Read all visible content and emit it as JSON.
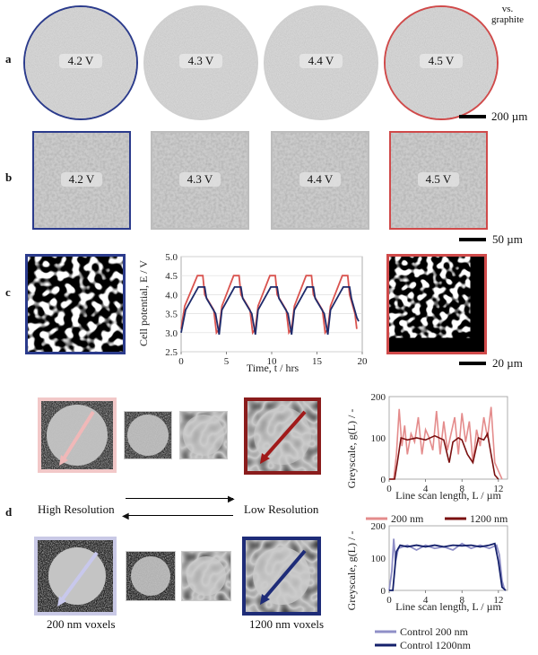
{
  "header": {
    "vs_line1": "vs.",
    "vs_line2": "graphite"
  },
  "panel_a": {
    "letter": "a",
    "discs": [
      {
        "label": "4.2 V",
        "border": "#2b3b8c"
      },
      {
        "label": "4.3 V",
        "border": "none"
      },
      {
        "label": "4.4 V",
        "border": "none"
      },
      {
        "label": "4.5 V",
        "border": "#d04a4a"
      }
    ],
    "scale_bar": "200 µm"
  },
  "panel_b": {
    "letter": "b",
    "tiles": [
      {
        "label": "4.2 V",
        "border": "#2b3b8c"
      },
      {
        "label": "4.3 V",
        "border": "none"
      },
      {
        "label": "4.4 V",
        "border": "none"
      },
      {
        "label": "4.5 V",
        "border": "#d04a4a"
      }
    ],
    "scale_bar": "50 µm"
  },
  "panel_c": {
    "letter": "c",
    "scale_bar": "20 µm",
    "chart_data": {
      "type": "line",
      "xlabel": "Time, t / hrs",
      "ylabel": "Cell potential, E / V",
      "xlim": [
        0,
        20
      ],
      "ylim": [
        2.5,
        5.0
      ],
      "xticks": [
        "0",
        "5",
        "10",
        "15",
        "20"
      ],
      "yticks": [
        "2.5",
        "3.0",
        "3.5",
        "4.0",
        "4.5",
        "5.0"
      ],
      "series": [
        {
          "color": "#d9534f",
          "x": [
            0,
            0.4,
            1.8,
            2.4,
            2.6,
            3.6,
            3.9,
            4.2,
            4.5,
            5.8,
            6.4,
            6.6,
            7.6,
            7.9,
            8.2,
            8.5,
            9.8,
            10.4,
            10.6,
            11.6,
            11.9,
            12.2,
            12.5,
            13.8,
            14.4,
            14.6,
            15.6,
            15.9,
            16.2,
            16.5,
            17.8,
            18.4,
            18.6,
            19.2,
            19.4
          ],
          "y": [
            3.1,
            3.7,
            4.5,
            4.5,
            4.0,
            3.6,
            3.0,
            3.1,
            3.7,
            4.5,
            4.5,
            4.0,
            3.6,
            3.0,
            3.1,
            3.7,
            4.5,
            4.5,
            4.0,
            3.6,
            3.0,
            3.1,
            3.7,
            4.5,
            4.5,
            4.0,
            3.6,
            3.0,
            3.1,
            3.7,
            4.5,
            4.5,
            4.0,
            3.5,
            3.1
          ]
        },
        {
          "color": "#1f2b6b",
          "x": [
            0,
            0.5,
            1.9,
            2.6,
            2.8,
            3.8,
            4.2,
            4.5,
            5.9,
            6.6,
            6.8,
            7.8,
            8.2,
            8.5,
            9.9,
            10.6,
            10.8,
            11.8,
            12.2,
            12.5,
            13.9,
            14.6,
            14.8,
            15.8,
            16.2,
            16.5,
            17.9,
            18.6,
            18.8,
            19.4,
            19.6
          ],
          "y": [
            3.0,
            3.6,
            4.2,
            4.2,
            3.9,
            3.5,
            2.95,
            3.6,
            4.2,
            4.2,
            3.9,
            3.5,
            2.95,
            3.6,
            4.2,
            4.2,
            3.9,
            3.5,
            2.95,
            3.6,
            4.2,
            4.2,
            3.9,
            3.5,
            2.95,
            3.6,
            4.2,
            4.2,
            3.9,
            3.4,
            3.3
          ]
        }
      ]
    }
  },
  "panel_d": {
    "letter": "d",
    "high_res": "High Resolution",
    "low_res": "Low Resolution",
    "label_200": "200 nm voxels",
    "label_1200": "1200 nm voxels",
    "chart_top": {
      "type": "line",
      "xlabel": "Line scan length, L / µm",
      "ylabel": "Greyscale, g(L) / -",
      "xlim": [
        0,
        13
      ],
      "ylim": [
        0,
        200
      ],
      "xticks": [
        "0",
        "4",
        "8",
        "12"
      ],
      "yticks": [
        "0",
        "100",
        "200"
      ],
      "series": [
        {
          "name": "200  nm",
          "color": "#e48c8c",
          "x": [
            0,
            0.5,
            0.8,
            1.1,
            1.4,
            1.7,
            2.0,
            2.4,
            2.8,
            3.2,
            3.6,
            4.0,
            4.4,
            4.8,
            5.2,
            5.6,
            6.0,
            6.4,
            6.8,
            7.2,
            7.6,
            8.0,
            8.4,
            8.8,
            9.2,
            9.6,
            10.0,
            10.4,
            10.8,
            11.2,
            11.6,
            12.0,
            12.4
          ],
          "y": [
            0,
            0,
            60,
            170,
            80,
            130,
            60,
            110,
            90,
            150,
            60,
            120,
            100,
            70,
            165,
            60,
            140,
            70,
            110,
            150,
            60,
            160,
            90,
            140,
            40,
            120,
            80,
            150,
            100,
            175,
            40,
            20,
            0
          ]
        },
        {
          "name": "1200  nm",
          "color": "#7a1010",
          "x": [
            0,
            0.6,
            0.9,
            1.3,
            2.0,
            3.0,
            4.0,
            5.0,
            6.0,
            6.6,
            7.0,
            7.6,
            8.0,
            8.6,
            9.2,
            9.8,
            10.4,
            10.8,
            11.2,
            11.6,
            12.0
          ],
          "y": [
            0,
            0,
            40,
            100,
            95,
            100,
            95,
            105,
            95,
            40,
            90,
            100,
            95,
            60,
            40,
            100,
            95,
            110,
            60,
            10,
            0
          ]
        }
      ]
    },
    "chart_bottom": {
      "type": "line",
      "xlabel": "Line scan length, L / µm",
      "ylabel": "Greyscale, g(L) / -",
      "xlim": [
        0,
        13
      ],
      "ylim": [
        0,
        200
      ],
      "xticks": [
        "0",
        "4",
        "8",
        "12"
      ],
      "yticks": [
        "0",
        "100",
        "200"
      ],
      "series": [
        {
          "name": "Control 200 nm",
          "color": "#8f8fc7",
          "x": [
            0,
            0.3,
            0.5,
            0.7,
            1.0,
            2.0,
            3.0,
            4.0,
            5.0,
            6.0,
            7.0,
            8.0,
            9.0,
            10.0,
            11.0,
            11.8,
            12.1,
            12.4,
            12.7
          ],
          "y": [
            0,
            60,
            160,
            90,
            130,
            140,
            125,
            140,
            130,
            135,
            125,
            145,
            130,
            140,
            130,
            140,
            110,
            30,
            0
          ]
        },
        {
          "name": "Control 1200nm",
          "color": "#14206b",
          "x": [
            0,
            0.4,
            0.8,
            1.2,
            2.0,
            3.0,
            4.0,
            5.0,
            6.0,
            7.0,
            8.0,
            9.0,
            10.0,
            11.0,
            11.6,
            12.0,
            12.4,
            12.8
          ],
          "y": [
            0,
            0,
            120,
            140,
            135,
            140,
            135,
            140,
            135,
            140,
            138,
            140,
            135,
            140,
            145,
            90,
            10,
            0
          ]
        }
      ]
    }
  }
}
